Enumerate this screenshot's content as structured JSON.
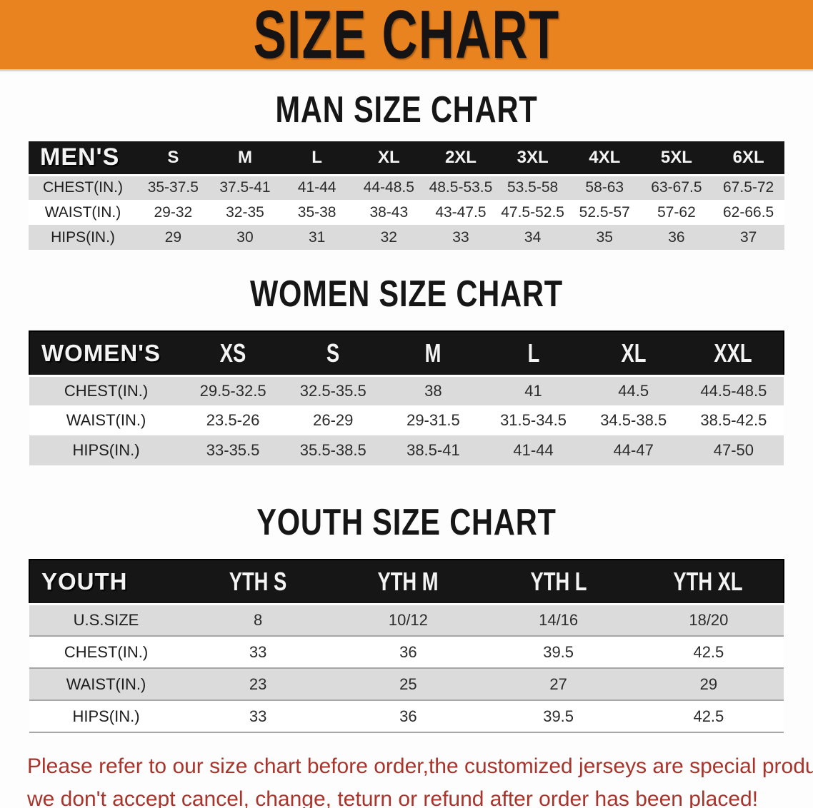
{
  "banner": {
    "title": "SIZE CHART",
    "bg_color": "#e88320"
  },
  "sections": [
    {
      "heading": "MAN SIZE CHART",
      "table": {
        "header_label": "MEN'S",
        "columns": [
          "S",
          "M",
          "L",
          "XL",
          "2XL",
          "3XL",
          "4XL",
          "5XL",
          "6XL"
        ],
        "rows": [
          {
            "label": "CHEST(IN.)",
            "values": [
              "35-37.5",
              "37.5-41",
              "41-44",
              "44-48.5",
              "48.5-53.5",
              "53.5-58",
              "58-63",
              "63-67.5",
              "67.5-72"
            ]
          },
          {
            "label": "WAIST(IN.)",
            "values": [
              "29-32",
              "32-35",
              "35-38",
              "38-43",
              "43-47.5",
              "47.5-52.5",
              "52.5-57",
              "57-62",
              "62-66.5"
            ]
          },
          {
            "label": "HIPS(IN.)",
            "values": [
              "29",
              "30",
              "31",
              "32",
              "33",
              "34",
              "35",
              "36",
              "37"
            ]
          }
        ]
      }
    },
    {
      "heading": "WOMEN SIZE CHART",
      "table": {
        "header_label": "WOMEN'S",
        "columns": [
          "XS",
          "S",
          "M",
          "L",
          "XL",
          "XXL"
        ],
        "rows": [
          {
            "label": "CHEST(IN.)",
            "values": [
              "29.5-32.5",
              "32.5-35.5",
              "38",
              "41",
              "44.5",
              "44.5-48.5"
            ]
          },
          {
            "label": "WAIST(IN.)",
            "values": [
              "23.5-26",
              "26-29",
              "29-31.5",
              "31.5-34.5",
              "34.5-38.5",
              "38.5-42.5"
            ]
          },
          {
            "label": "HIPS(IN.)",
            "values": [
              "33-35.5",
              "35.5-38.5",
              "38.5-41",
              "41-44",
              "44-47",
              "47-50"
            ]
          }
        ]
      }
    },
    {
      "heading": "YOUTH SIZE CHART",
      "table": {
        "header_label": "YOUTH",
        "columns": [
          "YTH S",
          "YTH M",
          "YTH L",
          "YTH XL"
        ],
        "rows": [
          {
            "label": "U.S.SIZE",
            "values": [
              "8",
              "10/12",
              "14/16",
              "18/20"
            ]
          },
          {
            "label": "CHEST(IN.)",
            "values": [
              "33",
              "36",
              "39.5",
              "42.5"
            ]
          },
          {
            "label": "WAIST(IN.)",
            "values": [
              "23",
              "25",
              "27",
              "29"
            ]
          },
          {
            "label": "HIPS(IN.)",
            "values": [
              "33",
              "36",
              "39.5",
              "42.5"
            ]
          }
        ]
      }
    }
  ],
  "disclaimer": {
    "line1": "Please refer to our size chart before order,the customized jerseys are special products,",
    "line2": "we don't accept cancel, change, teturn or refund after order has been placed!",
    "color": "#a8342b"
  }
}
